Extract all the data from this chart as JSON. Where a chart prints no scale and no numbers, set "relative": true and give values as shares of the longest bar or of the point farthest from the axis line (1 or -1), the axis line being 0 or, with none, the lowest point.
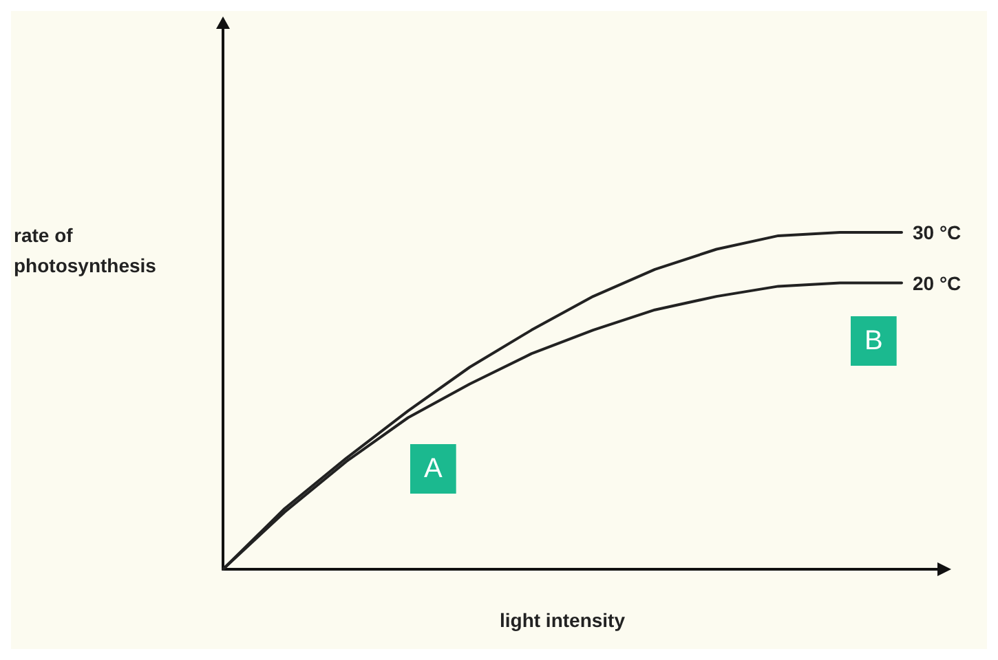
{
  "chart_data": {
    "type": "line",
    "relative": true,
    "xlabel": "light intensity",
    "ylabel": "rate of\nphotosynthesis",
    "categories": [
      null,
      null,
      null,
      null,
      null,
      null,
      null,
      null,
      null,
      null,
      null,
      null
    ],
    "series": [
      {
        "name": "30 °C",
        "color": "#222222",
        "values": [
          0,
          0.18,
          0.33,
          0.47,
          0.6,
          0.71,
          0.81,
          0.89,
          0.95,
          0.99,
          1,
          1
        ]
      },
      {
        "name": "20 °C",
        "color": "#222222",
        "values": [
          0,
          0.17,
          0.32,
          0.45,
          0.55,
          0.64,
          0.71,
          0.77,
          0.81,
          0.84,
          0.85,
          0.85
        ]
      }
    ],
    "annotations": [
      "A",
      "B"
    ],
    "grid": false,
    "legend": false,
    "marker": "none",
    "line_style": "solid"
  }
}
